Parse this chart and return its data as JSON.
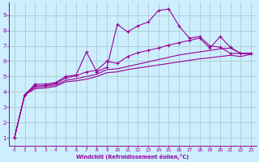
{
  "bg_color": "#cceeff",
  "grid_color": "#aacccc",
  "line_color": "#990099",
  "xlabel": "Windchill (Refroidissement éolien,°C)",
  "xlim": [
    -0.5,
    23.5
  ],
  "ylim": [
    0.5,
    9.8
  ],
  "yticks": [
    1,
    2,
    3,
    4,
    5,
    6,
    7,
    8,
    9
  ],
  "xticks": [
    0,
    1,
    2,
    3,
    4,
    5,
    6,
    7,
    8,
    9,
    10,
    11,
    12,
    13,
    14,
    15,
    16,
    17,
    18,
    19,
    20,
    21,
    22,
    23
  ],
  "series1_x": [
    0,
    1,
    2,
    3,
    4,
    5,
    6,
    7,
    8,
    9,
    10,
    11,
    12,
    13,
    14,
    15,
    16,
    17,
    18,
    19,
    20,
    21,
    22,
    23
  ],
  "series1_y": [
    1.0,
    3.8,
    4.5,
    4.5,
    4.6,
    5.0,
    5.1,
    6.6,
    5.3,
    5.6,
    8.4,
    7.9,
    8.3,
    8.55,
    9.3,
    9.4,
    8.3,
    7.5,
    7.6,
    7.0,
    6.9,
    6.5,
    6.5,
    6.5
  ],
  "series2_x": [
    0,
    1,
    2,
    3,
    4,
    5,
    6,
    7,
    8,
    9,
    10,
    11,
    12,
    13,
    14,
    15,
    16,
    17,
    18,
    19,
    20,
    21,
    22,
    23
  ],
  "series2_y": [
    1.0,
    3.8,
    4.4,
    4.4,
    4.55,
    4.9,
    5.05,
    5.3,
    5.4,
    6.0,
    5.85,
    6.3,
    6.55,
    6.7,
    6.85,
    7.05,
    7.2,
    7.35,
    7.5,
    6.85,
    7.6,
    6.9,
    6.5,
    6.5
  ],
  "series3_x": [
    0,
    1,
    2,
    3,
    4,
    5,
    6,
    7,
    8,
    9,
    10,
    11,
    12,
    13,
    14,
    15,
    16,
    17,
    18,
    19,
    20,
    21,
    22,
    23
  ],
  "series3_y": [
    1.0,
    3.8,
    4.3,
    4.35,
    4.45,
    4.75,
    4.85,
    5.0,
    5.15,
    5.45,
    5.5,
    5.65,
    5.8,
    5.95,
    6.1,
    6.25,
    6.4,
    6.5,
    6.6,
    6.7,
    6.8,
    6.85,
    6.5,
    6.5
  ],
  "series4_x": [
    0,
    1,
    2,
    3,
    4,
    5,
    6,
    7,
    8,
    9,
    10,
    11,
    12,
    13,
    14,
    15,
    16,
    17,
    18,
    19,
    20,
    21,
    22,
    23
  ],
  "series4_y": [
    1.0,
    3.8,
    4.2,
    4.25,
    4.35,
    4.65,
    4.72,
    4.82,
    5.0,
    5.25,
    5.3,
    5.45,
    5.55,
    5.65,
    5.75,
    5.85,
    5.95,
    6.05,
    6.15,
    6.22,
    6.3,
    6.38,
    6.3,
    6.45
  ]
}
